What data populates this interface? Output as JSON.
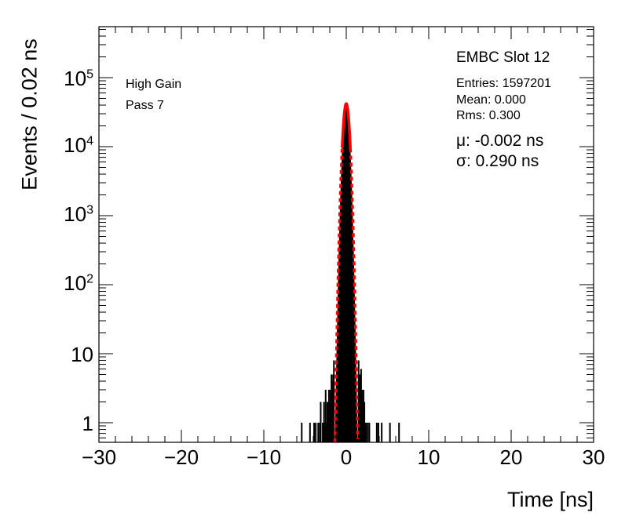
{
  "chart_data": {
    "type": "histogram",
    "title": "EMBC Slot 12",
    "xlabel": "Time [ns]",
    "ylabel": "Events / 0.02 ns",
    "xlim": [
      -30,
      30
    ],
    "ylim": [
      0.5,
      500000
    ],
    "yscale": "log",
    "x_tick_labels": [
      "−30",
      "−20",
      "−10",
      "0",
      "10",
      "20",
      "30"
    ],
    "y_tick_labels": [
      {
        "base": "10",
        "exp": "5"
      },
      {
        "base": "10",
        "exp": "4"
      },
      {
        "base": "10",
        "exp": "3"
      },
      {
        "base": "10",
        "exp": "2"
      },
      {
        "base": "10",
        "exp": ""
      },
      {
        "base": "1",
        "exp": ""
      }
    ],
    "annotations": {
      "gain": "High Gain",
      "pass": "Pass 7"
    },
    "stats": {
      "entries": "Entries: 1597201",
      "mean": "Mean: 0.000",
      "rms": "Rms: 0.300"
    },
    "fit": {
      "mu_text": "μ: -0.002 ns",
      "sigma_text": "σ: 0.290 ns",
      "mu": -0.002,
      "sigma": 0.29,
      "amplitude": 42000,
      "color": "#ff0000"
    },
    "histogram_color": "#000000",
    "histogram_bins": [
      [
        -5.4,
        1
      ],
      [
        -4.4,
        1
      ],
      [
        -3.9,
        1
      ],
      [
        -3.7,
        1
      ],
      [
        -3.4,
        1
      ],
      [
        -3.2,
        1
      ],
      [
        -3.1,
        2
      ],
      [
        -2.85,
        1
      ],
      [
        -2.7,
        2
      ],
      [
        -2.6,
        1
      ],
      [
        -2.5,
        3
      ],
      [
        -2.4,
        1
      ],
      [
        -2.3,
        2
      ],
      [
        -2.2,
        2
      ],
      [
        -2.1,
        3
      ],
      [
        -2.0,
        2
      ],
      [
        -1.9,
        3
      ],
      [
        -1.8,
        5
      ],
      [
        -1.7,
        4
      ],
      [
        -1.6,
        5
      ],
      [
        -1.5,
        8
      ],
      [
        1.5,
        8
      ],
      [
        1.6,
        5
      ],
      [
        1.7,
        5
      ],
      [
        1.8,
        6
      ],
      [
        1.9,
        3
      ],
      [
        2.0,
        2
      ],
      [
        2.1,
        3
      ],
      [
        2.2,
        2
      ],
      [
        2.3,
        1
      ],
      [
        2.4,
        1
      ],
      [
        2.6,
        1
      ],
      [
        2.8,
        1
      ],
      [
        3.7,
        1
      ],
      [
        3.9,
        1
      ],
      [
        4.3,
        1
      ],
      [
        5.3,
        1
      ],
      [
        6.4,
        1
      ]
    ],
    "grid": false
  }
}
